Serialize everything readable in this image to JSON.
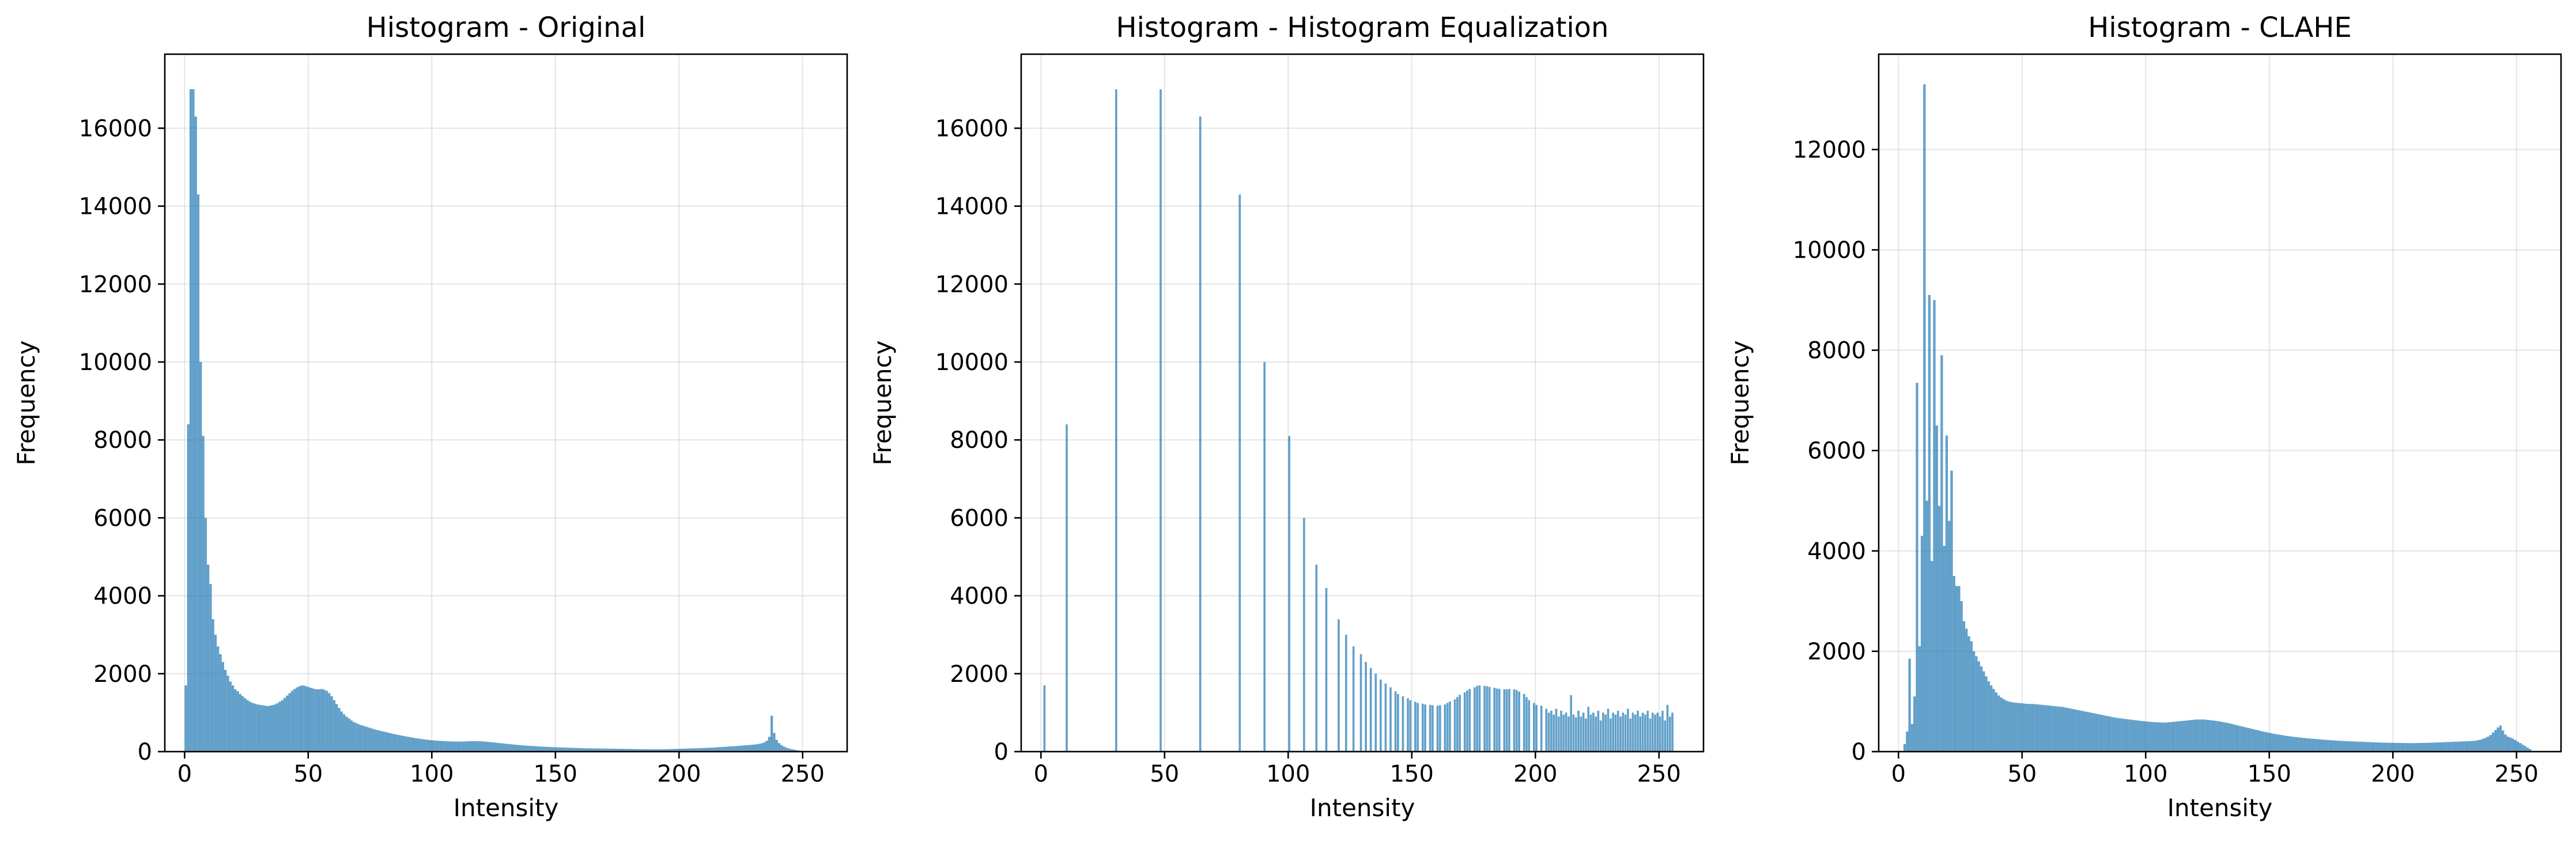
{
  "figure": {
    "bar_color": "#1f77b4",
    "bar_alpha": 0.7,
    "grid_color": "#b0b0b0"
  },
  "chart_data": [
    {
      "type": "bar",
      "title": "Histogram - Original",
      "xlabel": "Intensity",
      "ylabel": "Frequency",
      "xlim": [
        -8,
        268
      ],
      "ylim": [
        0,
        17900
      ],
      "xticks": [
        0,
        50,
        100,
        150,
        200,
        250
      ],
      "yticks": [
        0,
        2000,
        4000,
        6000,
        8000,
        10000,
        12000,
        14000,
        16000
      ],
      "grid": true,
      "bins": "intensity 0-255 (width 1)",
      "values": [
        1700,
        8400,
        17000,
        17000,
        16300,
        14300,
        10000,
        8100,
        6000,
        4800,
        4300,
        3400,
        3000,
        2700,
        2500,
        2300,
        2100,
        1950,
        1800,
        1700,
        1600,
        1550,
        1480,
        1420,
        1370,
        1320,
        1280,
        1250,
        1230,
        1210,
        1200,
        1190,
        1180,
        1170,
        1180,
        1190,
        1210,
        1240,
        1280,
        1320,
        1380,
        1440,
        1500,
        1560,
        1610,
        1650,
        1680,
        1700,
        1690,
        1670,
        1650,
        1630,
        1610,
        1600,
        1600,
        1610,
        1590,
        1560,
        1500,
        1420,
        1320,
        1220,
        1120,
        1030,
        960,
        900,
        850,
        800,
        760,
        730,
        700,
        680,
        660,
        640,
        620,
        600,
        580,
        560,
        545,
        530,
        515,
        500,
        485,
        470,
        455,
        440,
        428,
        416,
        404,
        392,
        380,
        368,
        357,
        346,
        336,
        326,
        318,
        310,
        302,
        295,
        290,
        285,
        280,
        276,
        272,
        268,
        265,
        262,
        260,
        258,
        258,
        258,
        260,
        262,
        265,
        268,
        270,
        270,
        268,
        265,
        262,
        258,
        252,
        246,
        240,
        233,
        226,
        219,
        212,
        205,
        198,
        192,
        186,
        180,
        174,
        168,
        163,
        158,
        153,
        149,
        145,
        141,
        137,
        133,
        129,
        126,
        123,
        120,
        117,
        114,
        111,
        108,
        106,
        104,
        102,
        100,
        98,
        96,
        94,
        92,
        90,
        88,
        86,
        85,
        84,
        83,
        82,
        81,
        80,
        79,
        78,
        77,
        76,
        75,
        74,
        73,
        72,
        71,
        70,
        69,
        68,
        67,
        66,
        65,
        64,
        63,
        62,
        61,
        60,
        60,
        60,
        60,
        61,
        62,
        63,
        64,
        66,
        68,
        70,
        72,
        74,
        76,
        78,
        80,
        82,
        84,
        86,
        88,
        90,
        92,
        95,
        98,
        101,
        104,
        108,
        112,
        116,
        120,
        124,
        128,
        132,
        136,
        140,
        145,
        150,
        155,
        160,
        165,
        170,
        176,
        182,
        190,
        200,
        215,
        240,
        280,
        380,
        920,
        480,
        300,
        220,
        170,
        130,
        100,
        80,
        65,
        52,
        40,
        28,
        18,
        10,
        5
      ]
    },
    {
      "type": "bar",
      "title": "Histogram - Histogram Equalization",
      "xlabel": "Intensity",
      "ylabel": "Frequency",
      "xlim": [
        -8,
        268
      ],
      "ylim": [
        0,
        17900
      ],
      "xticks": [
        0,
        50,
        100,
        150,
        200,
        250
      ],
      "yticks": [
        0,
        2000,
        4000,
        6000,
        8000,
        10000,
        12000,
        14000,
        16000
      ],
      "grid": true,
      "bins": "intensity 0-255 (width 1)",
      "points": [
        [
          1,
          1700
        ],
        [
          10,
          8400
        ],
        [
          30,
          17000
        ],
        [
          48,
          17000
        ],
        [
          64,
          16300
        ],
        [
          80,
          14300
        ],
        [
          90,
          10000
        ],
        [
          100,
          8100
        ],
        [
          106,
          6000
        ],
        [
          111,
          4800
        ],
        [
          115,
          4200
        ],
        [
          120,
          3400
        ],
        [
          123,
          3000
        ],
        [
          126,
          2700
        ],
        [
          129,
          2500
        ],
        [
          131,
          2300
        ],
        [
          133,
          2150
        ],
        [
          135,
          2000
        ],
        [
          137,
          1850
        ],
        [
          139,
          1750
        ],
        [
          141,
          1650
        ],
        [
          143,
          1550
        ],
        [
          144,
          1480
        ],
        [
          146,
          1420
        ],
        [
          148,
          1370
        ],
        [
          149,
          1320
        ],
        [
          151,
          1280
        ],
        [
          152,
          1250
        ],
        [
          154,
          1230
        ],
        [
          155,
          1210
        ],
        [
          157,
          1200
        ],
        [
          158,
          1190
        ],
        [
          160,
          1180
        ],
        [
          161,
          1190
        ],
        [
          163,
          1210
        ],
        [
          164,
          1250
        ],
        [
          165,
          1290
        ],
        [
          167,
          1340
        ],
        [
          168,
          1400
        ],
        [
          169,
          1460
        ],
        [
          171,
          1520
        ],
        [
          172,
          1570
        ],
        [
          173,
          1610
        ],
        [
          175,
          1650
        ],
        [
          176,
          1690
        ],
        [
          177,
          1700
        ],
        [
          179,
          1690
        ],
        [
          180,
          1680
        ],
        [
          181,
          1660
        ],
        [
          183,
          1640
        ],
        [
          184,
          1620
        ],
        [
          185,
          1610
        ],
        [
          187,
          1600
        ],
        [
          188,
          1600
        ],
        [
          189,
          1610
        ],
        [
          191,
          1600
        ],
        [
          192,
          1580
        ],
        [
          193,
          1540
        ],
        [
          195,
          1480
        ],
        [
          196,
          1400
        ],
        [
          197,
          1320
        ],
        [
          199,
          1250
        ],
        [
          200,
          1200
        ],
        [
          202,
          1180
        ],
        [
          204,
          1100
        ],
        [
          205,
          1000
        ],
        [
          206,
          1050
        ],
        [
          207,
          950
        ],
        [
          208,
          1100
        ],
        [
          209,
          900
        ],
        [
          210,
          1050
        ],
        [
          211,
          950
        ],
        [
          212,
          1000
        ],
        [
          213,
          900
        ],
        [
          214,
          1450
        ],
        [
          215,
          950
        ],
        [
          216,
          880
        ],
        [
          217,
          1050
        ],
        [
          218,
          900
        ],
        [
          219,
          1000
        ],
        [
          220,
          850
        ],
        [
          221,
          1150
        ],
        [
          222,
          950
        ],
        [
          223,
          1000
        ],
        [
          224,
          900
        ],
        [
          225,
          1050
        ],
        [
          226,
          800
        ],
        [
          227,
          1000
        ],
        [
          228,
          950
        ],
        [
          229,
          1100
        ],
        [
          230,
          850
        ],
        [
          231,
          1000
        ],
        [
          232,
          950
        ],
        [
          233,
          1050
        ],
        [
          234,
          900
        ],
        [
          235,
          1000
        ],
        [
          236,
          950
        ],
        [
          237,
          1100
        ],
        [
          238,
          850
        ],
        [
          239,
          1000
        ],
        [
          240,
          950
        ],
        [
          241,
          1050
        ],
        [
          242,
          900
        ],
        [
          243,
          1000
        ],
        [
          244,
          950
        ],
        [
          245,
          1050
        ],
        [
          246,
          850
        ],
        [
          247,
          1000
        ],
        [
          248,
          950
        ],
        [
          249,
          1000
        ],
        [
          250,
          900
        ],
        [
          251,
          1050
        ],
        [
          252,
          800
        ],
        [
          253,
          1200
        ],
        [
          254,
          900
        ],
        [
          255,
          1000
        ]
      ]
    },
    {
      "type": "bar",
      "title": "Histogram - CLAHE",
      "xlabel": "Intensity",
      "ylabel": "Frequency",
      "xlim": [
        -8,
        268
      ],
      "ylim": [
        0,
        13900
      ],
      "xticks": [
        0,
        50,
        100,
        150,
        200,
        250
      ],
      "yticks": [
        0,
        2000,
        4000,
        6000,
        8000,
        10000,
        12000
      ],
      "grid": true,
      "bins": "intensity 0-255 (width 1)",
      "values": [
        0,
        0,
        150,
        400,
        1850,
        550,
        1100,
        7350,
        2100,
        4300,
        13300,
        5000,
        9100,
        3800,
        9000,
        6500,
        4900,
        7900,
        4100,
        6300,
        4600,
        5600,
        3500,
        3300,
        3300,
        3000,
        2600,
        2450,
        2300,
        2200,
        2000,
        1900,
        1800,
        1700,
        1600,
        1500,
        1400,
        1320,
        1250,
        1180,
        1120,
        1080,
        1050,
        1020,
        1000,
        990,
        980,
        975,
        970,
        965,
        960,
        955,
        950,
        950,
        950,
        945,
        940,
        935,
        930,
        925,
        920,
        915,
        910,
        905,
        900,
        895,
        890,
        880,
        870,
        860,
        850,
        840,
        830,
        820,
        810,
        800,
        790,
        780,
        770,
        760,
        750,
        740,
        730,
        720,
        710,
        700,
        690,
        680,
        672,
        665,
        658,
        652,
        646,
        640,
        634,
        628,
        622,
        616,
        610,
        605,
        600,
        596,
        592,
        588,
        585,
        582,
        580,
        580,
        582,
        585,
        590,
        595,
        600,
        605,
        610,
        615,
        620,
        625,
        630,
        635,
        640,
        640,
        640,
        640,
        635,
        630,
        625,
        620,
        612,
        604,
        596,
        588,
        578,
        568,
        556,
        544,
        532,
        520,
        508,
        496,
        484,
        472,
        460,
        448,
        436,
        424,
        412,
        400,
        390,
        380,
        370,
        360,
        350,
        342,
        334,
        326,
        318,
        310,
        304,
        298,
        292,
        286,
        280,
        275,
        270,
        265,
        260,
        256,
        252,
        248,
        244,
        240,
        236,
        232,
        228,
        225,
        222,
        219,
        216,
        213,
        210,
        208,
        206,
        204,
        202,
        200,
        198,
        196,
        194,
        192,
        190,
        188,
        186,
        184,
        182,
        180,
        179,
        178,
        177,
        176,
        175,
        174,
        173,
        172,
        171,
        170,
        170,
        170,
        170,
        171,
        172,
        173,
        174,
        175,
        176,
        178,
        180,
        182,
        184,
        186,
        188,
        190,
        192,
        194,
        196,
        198,
        200,
        202,
        204,
        206,
        208,
        210,
        214,
        220,
        228,
        240,
        256,
        276,
        300,
        330,
        380,
        430,
        480,
        520,
        420,
        340,
        300,
        280,
        260,
        230,
        200,
        170,
        140,
        110,
        80,
        50
      ]
    }
  ]
}
